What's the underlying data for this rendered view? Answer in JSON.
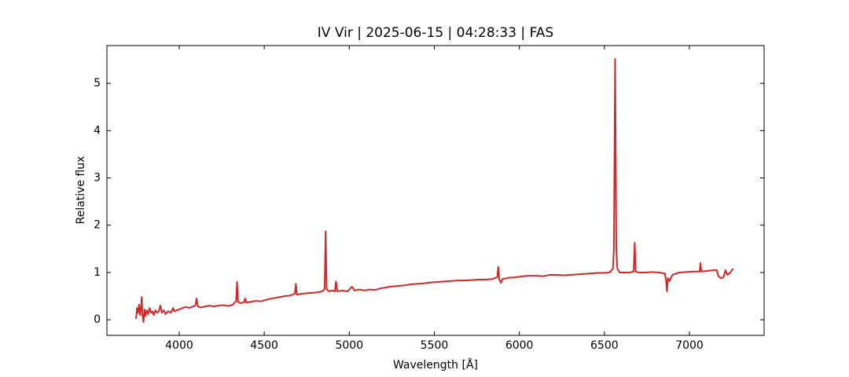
{
  "chart_data": {
    "type": "line",
    "title": "IV Vir | 2025-06-15 | 04:28:33 | FAS",
    "x_label": "Wavelength [Å]",
    "y_label": "Relative flux",
    "xlim": [
      3575,
      7439
    ],
    "ylim": [
      -0.33,
      5.8
    ],
    "xticks": [
      4000,
      4500,
      5000,
      5500,
      6000,
      6500,
      7000
    ],
    "yticks": [
      0,
      1,
      2,
      3,
      4,
      5
    ],
    "x": [
      3746,
      3752,
      3758,
      3764,
      3770,
      3776,
      3780,
      3784,
      3790,
      3796,
      3802,
      3810,
      3818,
      3826,
      3834,
      3842,
      3850,
      3860,
      3870,
      3880,
      3889,
      3898,
      3910,
      3920,
      3935,
      3950,
      3965,
      3970,
      3985,
      4000,
      4020,
      4040,
      4060,
      4080,
      4095,
      4102,
      4110,
      4130,
      4150,
      4180,
      4200,
      4230,
      4260,
      4290,
      4315,
      4335,
      4340,
      4346,
      4360,
      4380,
      4388,
      4395,
      4420,
      4450,
      4480,
      4500,
      4530,
      4560,
      4590,
      4620,
      4650,
      4680,
      4686,
      4692,
      4720,
      4750,
      4780,
      4810,
      4840,
      4855,
      4861,
      4867,
      4880,
      4900,
      4915,
      4922,
      4930,
      4960,
      4990,
      5016,
      5030,
      5060,
      5090,
      5120,
      5150,
      5180,
      5210,
      5240,
      5270,
      5300,
      5330,
      5360,
      5400,
      5440,
      5480,
      5520,
      5560,
      5600,
      5640,
      5680,
      5720,
      5760,
      5800,
      5840,
      5870,
      5876,
      5882,
      5892,
      5900,
      5940,
      5980,
      6020,
      6060,
      6100,
      6140,
      6180,
      6220,
      6260,
      6300,
      6340,
      6380,
      6420,
      6460,
      6500,
      6530,
      6550,
      6556,
      6563,
      6570,
      6576,
      6590,
      6620,
      6650,
      6672,
      6678,
      6684,
      6700,
      6740,
      6780,
      6820,
      6855,
      6862,
      6868,
      6874,
      6882,
      6900,
      6940,
      6980,
      7020,
      7060,
      7065,
      7070,
      7100,
      7140,
      7160,
      7170,
      7185,
      7200,
      7212,
      7222,
      7235,
      7250,
      7258
    ],
    "series": [
      {
        "color": "#d62728",
        "values": [
          0.02,
          0.25,
          0.15,
          0.32,
          0.1,
          0.3,
          0.48,
          0.1,
          -0.05,
          0.22,
          0.08,
          0.2,
          0.12,
          0.25,
          0.15,
          0.18,
          0.1,
          0.2,
          0.15,
          0.18,
          0.3,
          0.15,
          0.2,
          0.12,
          0.18,
          0.15,
          0.25,
          0.18,
          0.2,
          0.22,
          0.25,
          0.27,
          0.25,
          0.28,
          0.3,
          0.45,
          0.28,
          0.26,
          0.28,
          0.3,
          0.28,
          0.3,
          0.31,
          0.29,
          0.32,
          0.4,
          0.8,
          0.38,
          0.35,
          0.37,
          0.45,
          0.36,
          0.38,
          0.4,
          0.39,
          0.41,
          0.44,
          0.46,
          0.48,
          0.5,
          0.51,
          0.55,
          0.76,
          0.53,
          0.55,
          0.56,
          0.57,
          0.58,
          0.6,
          0.65,
          1.87,
          0.65,
          0.6,
          0.62,
          0.6,
          0.81,
          0.6,
          0.62,
          0.6,
          0.7,
          0.62,
          0.64,
          0.62,
          0.64,
          0.63,
          0.66,
          0.68,
          0.7,
          0.71,
          0.72,
          0.73,
          0.75,
          0.76,
          0.77,
          0.79,
          0.8,
          0.81,
          0.82,
          0.83,
          0.83,
          0.84,
          0.85,
          0.85,
          0.86,
          0.9,
          1.12,
          0.85,
          0.78,
          0.86,
          0.89,
          0.9,
          0.92,
          0.93,
          0.93,
          0.92,
          0.95,
          0.95,
          0.94,
          0.95,
          0.96,
          0.97,
          0.98,
          0.99,
          0.99,
          1.0,
          1.08,
          1.5,
          5.52,
          1.5,
          1.08,
          1.0,
          1.0,
          1.0,
          1.02,
          1.63,
          1.02,
          1.0,
          1.0,
          1.01,
          1.0,
          0.98,
          0.85,
          0.6,
          0.88,
          0.82,
          0.95,
          1.0,
          1.01,
          1.02,
          1.02,
          1.2,
          1.02,
          1.03,
          1.05,
          1.05,
          0.92,
          0.88,
          0.9,
          1.05,
          0.95,
          0.98,
          1.05,
          1.08
        ]
      }
    ]
  }
}
